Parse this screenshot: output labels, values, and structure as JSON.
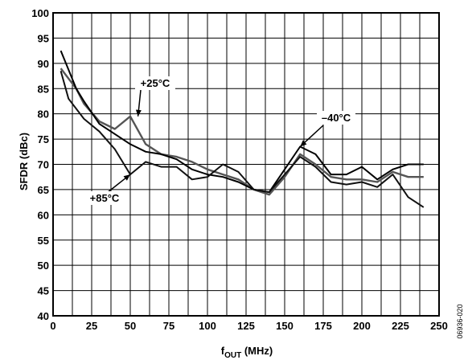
{
  "chart_data": {
    "type": "line",
    "xlabel_main": "f",
    "xlabel_sub": "OUT",
    "xlabel_unit": " (MHz)",
    "ylabel": "SFDR (dBc)",
    "xlim": [
      0,
      250
    ],
    "ylim": [
      40,
      100
    ],
    "xticks": [
      0,
      25,
      50,
      75,
      100,
      125,
      150,
      175,
      200,
      225,
      250
    ],
    "yticks": [
      40,
      45,
      50,
      55,
      60,
      65,
      70,
      75,
      80,
      85,
      90,
      95,
      100
    ],
    "grid": true,
    "figure_id": "06936-020",
    "series": [
      {
        "name": "+25°C",
        "color": "#555555",
        "x": [
          5,
          15,
          20,
          30,
          40,
          50,
          60,
          70,
          80,
          90,
          100,
          110,
          120,
          130,
          140,
          150,
          160,
          170,
          180,
          190,
          200,
          210,
          220,
          230,
          240
        ],
        "y": [
          89,
          85,
          82,
          78.5,
          77,
          79.5,
          74,
          72,
          71.5,
          70.5,
          69,
          68,
          67,
          65,
          64,
          67.5,
          72,
          70,
          67.5,
          67,
          67,
          66.5,
          68.5,
          67.5,
          67.5
        ]
      },
      {
        "name": "−40°C",
        "color": "#000000",
        "x": [
          5,
          15,
          20,
          30,
          40,
          50,
          60,
          70,
          80,
          90,
          100,
          110,
          120,
          130,
          140,
          150,
          160,
          170,
          180,
          190,
          200,
          210,
          220,
          230,
          240
        ],
        "y": [
          92.5,
          85,
          82.5,
          78,
          76,
          74,
          72.5,
          72,
          71,
          69,
          68,
          67.5,
          66.5,
          65,
          64.5,
          69,
          73.5,
          72,
          68,
          68,
          69.5,
          67,
          69,
          70,
          70
        ]
      },
      {
        "name": "+85°C",
        "color": "#111111",
        "x": [
          5,
          10,
          20,
          30,
          40,
          50,
          60,
          70,
          80,
          90,
          100,
          110,
          120,
          130,
          140,
          150,
          160,
          170,
          180,
          190,
          200,
          210,
          220,
          230,
          240
        ],
        "y": [
          88.5,
          83,
          79,
          76.5,
          73,
          68,
          70.5,
          69.5,
          69.5,
          67,
          67.5,
          70,
          68.5,
          65,
          64.5,
          68,
          71.5,
          69.5,
          66.5,
          66,
          66.5,
          65.5,
          68,
          63.5,
          61.5
        ]
      }
    ],
    "annotations": [
      {
        "text": "+25°C",
        "series": 0
      },
      {
        "text": "–40°C",
        "series": 1
      },
      {
        "text": "+85°C",
        "series": 2
      }
    ]
  }
}
